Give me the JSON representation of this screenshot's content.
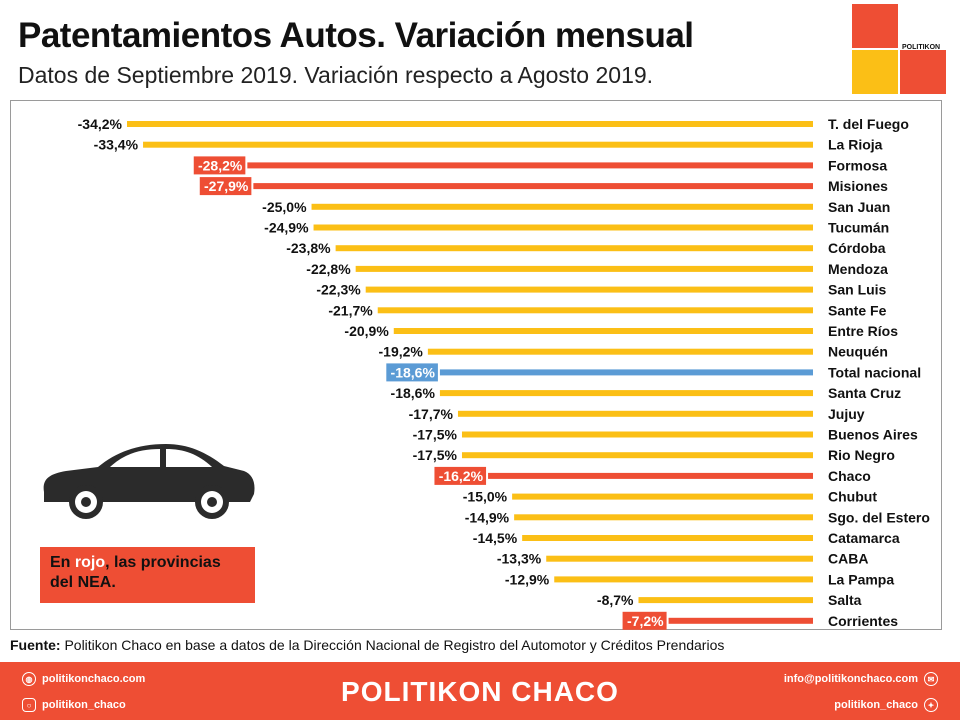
{
  "header": {
    "title": "Patentamientos Autos. Variación mensual",
    "subtitle": "Datos de Septiembre 2019. Variación respecto a Agosto 2019.",
    "logo_text": "POLITIKON"
  },
  "note": {
    "part1": "En ",
    "highlight": "rojo",
    "part2": ", las provincias del NEA."
  },
  "source": {
    "label": "Fuente:",
    "text": " Politikon Chaco en base a datos de la Dirección Nacional de Registro del Automotor y Créditos Prendarios"
  },
  "footer": {
    "website": "politikonchaco.com",
    "instagram": "politikon_chaco",
    "brand": "POLITIKON CHACO",
    "email": "info@politikonchaco.com",
    "twitter": "politikon_chaco"
  },
  "colors": {
    "default": "#fbbf16",
    "nea": "#ee4e34",
    "national": "#5b9bd5"
  },
  "chart_data": {
    "type": "bar",
    "orientation": "horizontal",
    "categories": [
      "T. del Fuego",
      "La Rioja",
      "Formosa",
      "Misiones",
      "San Juan",
      "Tucumán",
      "Córdoba",
      "Mendoza",
      "San Luis",
      "Sante Fe",
      "Entre Ríos",
      "Neuquén",
      "Total nacional",
      "Santa Cruz",
      "Jujuy",
      "Buenos Aires",
      "Rio Negro",
      "Chaco",
      "Chubut",
      "Sgo. del Estero",
      "Catamarca",
      "CABA",
      "La Pampa",
      "Salta",
      "Corrientes"
    ],
    "values": [
      -34.2,
      -33.4,
      -28.2,
      -27.9,
      -25.0,
      -24.9,
      -23.8,
      -22.8,
      -22.3,
      -21.7,
      -20.9,
      -19.2,
      -18.6,
      -18.6,
      -17.7,
      -17.5,
      -17.5,
      -16.2,
      -15.0,
      -14.9,
      -14.5,
      -13.3,
      -12.9,
      -8.7,
      -7.2
    ],
    "labels": [
      "-34,2%",
      "-33,4%",
      "-28,2%",
      "-27,9%",
      "-25,0%",
      "-24,9%",
      "-23,8%",
      "-22,8%",
      "-22,3%",
      "-21,7%",
      "-20,9%",
      "-19,2%",
      "-18,6%",
      "-18,6%",
      "-17,7%",
      "-17,5%",
      "-17,5%",
      "-16,2%",
      "-15,0%",
      "-14,9%",
      "-14,5%",
      "-13,3%",
      "-12,9%",
      "-8,7%",
      "-7,2%"
    ],
    "groups": [
      "default",
      "default",
      "nea",
      "nea",
      "default",
      "default",
      "default",
      "default",
      "default",
      "default",
      "default",
      "default",
      "national",
      "default",
      "default",
      "default",
      "default",
      "nea",
      "default",
      "default",
      "default",
      "default",
      "default",
      "default",
      "nea"
    ],
    "xlim": [
      -34.2,
      0
    ]
  }
}
